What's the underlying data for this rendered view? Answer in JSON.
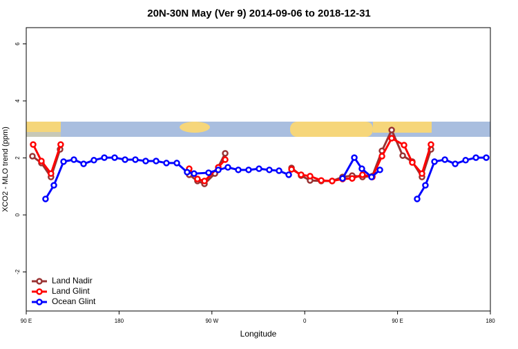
{
  "chart_data": {
    "type": "line",
    "title": "20N-30N May (Ver 9)   2014-09-06 to 2018-12-31",
    "x_label": "Longitude",
    "y_label": "XCO2 - MLO trend (ppm)",
    "xlim": [
      90,
      540
    ],
    "ylim": [
      -3.37,
      6.57
    ],
    "xticks": [
      {
        "value": 90,
        "label": "90 E"
      },
      180,
      {
        "value": 270,
        "label": "90 W"
      },
      {
        "value": 360,
        "label": "0"
      },
      {
        "value": 450,
        "label": "90 E"
      },
      {
        "value": 540,
        "label": "180"
      }
    ],
    "yticks": [
      -2,
      0,
      2,
      4,
      6
    ],
    "legend": "bottom-left",
    "series": [
      {
        "name": "Land Nadir",
        "color": "#993333",
        "x": [
          96,
          104.7,
          114,
          122.8,
          null,
          248,
          256,
          262.8,
          272.9,
          282.9,
          null,
          347.2,
          356.5,
          365.2,
          376,
          386.6,
          396.7,
          406,
          416,
          425.5,
          434.9,
          444.3,
          455,
          464.3,
          473.7,
          482.4
        ],
        "values": [
          2.06,
          1.82,
          1.33,
          2.3,
          null,
          1.41,
          1.19,
          1.09,
          1.45,
          2.16,
          null,
          1.65,
          1.38,
          1.21,
          1.19,
          1.19,
          1.33,
          1.38,
          1.33,
          1.36,
          2.25,
          2.98,
          2.08,
          1.87,
          1.33,
          2.3
        ]
      },
      {
        "name": "Land Glint",
        "color": "#ff0000",
        "x": [
          96.7,
          104.7,
          114,
          123.4,
          null,
          248,
          256,
          262.8,
          276.2,
          282.9,
          null,
          347.2,
          356.5,
          365.2,
          376,
          386.6,
          396.7,
          406,
          416,
          425.5,
          434.9,
          444.3,
          456.3,
          464.3,
          473.7,
          482.4
        ],
        "values": [
          2.47,
          1.89,
          1.45,
          2.47,
          null,
          1.62,
          1.26,
          1.19,
          1.67,
          1.94,
          null,
          1.6,
          1.41,
          1.36,
          1.21,
          1.19,
          1.26,
          1.28,
          1.41,
          1.33,
          2.06,
          2.69,
          2.45,
          1.84,
          1.45,
          2.47
        ]
      },
      {
        "name": "Ocean Glint",
        "color": "#0000ff",
        "x": [
          108.7,
          116.8,
          126.2,
          136.2,
          145.6,
          155.6,
          165.7,
          175.7,
          185.8,
          195.8,
          205.8,
          215.9,
          225.9,
          236,
          246,
          252.7,
          266.8,
          276.2,
          285.5,
          295.6,
          305.6,
          315.7,
          325.7,
          335.1,
          344.5,
          null,
          396.7,
          408.1,
          415.4,
          424.8,
          432.9,
          null,
          469,
          477,
          485.8,
          495.9,
          505.9,
          516,
          526,
          536
        ],
        "values": [
          0.56,
          1.04,
          1.87,
          1.94,
          1.79,
          1.92,
          2.01,
          2.01,
          1.94,
          1.94,
          1.89,
          1.89,
          1.82,
          1.82,
          1.5,
          1.45,
          1.48,
          1.58,
          1.67,
          1.58,
          1.58,
          1.62,
          1.58,
          1.55,
          1.41,
          null,
          1.28,
          2.01,
          1.62,
          1.33,
          1.58,
          null,
          0.56,
          1.04,
          1.87,
          1.94,
          1.79,
          1.92,
          2.01,
          2.01
        ]
      }
    ]
  }
}
